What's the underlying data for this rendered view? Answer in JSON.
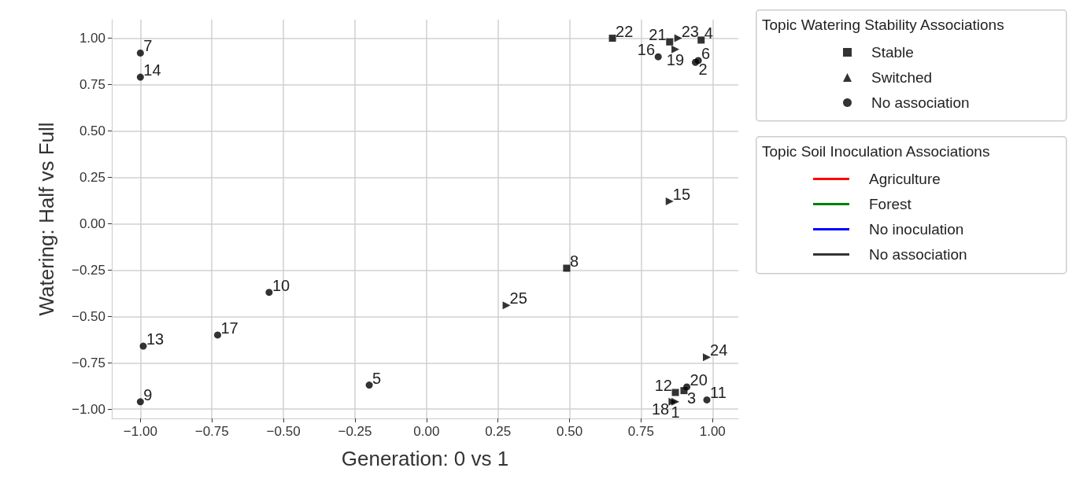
{
  "chart_data": {
    "type": "scatter",
    "xlabel": "Generation: 0 vs 1",
    "ylabel": "Watering: Half vs Full",
    "xlim": [
      -1.1,
      1.09
    ],
    "ylim": [
      -1.05,
      1.1
    ],
    "xticks": [
      {
        "value": -1,
        "label": "−1.00"
      },
      {
        "value": -0.75,
        "label": "−0.75"
      },
      {
        "value": -0.5,
        "label": "−0.50"
      },
      {
        "value": -0.25,
        "label": "−0.25"
      },
      {
        "value": 0,
        "label": "0.00"
      },
      {
        "value": 0.25,
        "label": "0.25"
      },
      {
        "value": 0.5,
        "label": "0.50"
      },
      {
        "value": 0.75,
        "label": "0.75"
      },
      {
        "value": 1,
        "label": "1.00"
      }
    ],
    "yticks": [
      {
        "value": -1,
        "label": "−1.00"
      },
      {
        "value": -0.75,
        "label": "−0.75"
      },
      {
        "value": -0.5,
        "label": "−0.50"
      },
      {
        "value": -0.25,
        "label": "−0.25"
      },
      {
        "value": 0,
        "label": "0.00"
      },
      {
        "value": 0.25,
        "label": "0.25"
      },
      {
        "value": 0.5,
        "label": "0.50"
      },
      {
        "value": 0.75,
        "label": "0.75"
      },
      {
        "value": 1,
        "label": "1.00"
      }
    ],
    "grid": true,
    "legend": "right",
    "legend_title": [
      "Topic Watering Stability Associations",
      "Topic Soil Inoculation Associations"
    ],
    "series": [
      {
        "name": "Stable",
        "marker": "square",
        "color": "#000000",
        "x": [
          0.65,
          0.85,
          0.96,
          0.49,
          0.9,
          0.87
        ],
        "values": [
          1.0,
          0.98,
          0.99,
          -0.24,
          -0.9,
          -0.91
        ]
      },
      {
        "name": "Switched",
        "marker": "triangle",
        "color": "#000000",
        "x": [
          0.88,
          0.87,
          0.28,
          0.85,
          0.98,
          0.86,
          0.87
        ],
        "values": [
          1.0,
          0.94,
          -0.44,
          0.12,
          -0.72,
          -0.96,
          -0.96
        ]
      },
      {
        "name": "No association",
        "marker": "circle",
        "color": "#000000",
        "x": [
          -1.0,
          -1.0,
          -0.99,
          -0.73,
          -0.55,
          -1.0,
          -0.2,
          0.81,
          0.94,
          0.95,
          0.91,
          0.98
        ],
        "values": [
          0.92,
          0.79,
          -0.66,
          -0.6,
          -0.37,
          -0.96,
          -0.87,
          0.9,
          0.87,
          0.88,
          -0.88,
          -0.95
        ]
      },
      {
        "type": "line",
        "name": "Agriculture",
        "color": "#ff0000"
      },
      {
        "type": "line",
        "name": "Forest",
        "color": "#008000"
      },
      {
        "type": "line",
        "name": "No inoculation",
        "color": "#0000ff"
      },
      {
        "type": "line",
        "name": "No association",
        "color": "#000000"
      }
    ],
    "annotations": [
      {
        "text": "22",
        "x": 0.65,
        "y": 1.0
      },
      {
        "text": "21",
        "x": 0.85,
        "y": 0.98
      },
      {
        "text": "4",
        "x": 0.96,
        "y": 0.99
      },
      {
        "text": "8",
        "x": 0.49,
        "y": -0.24
      },
      {
        "text": "3",
        "x": 0.9,
        "y": -0.9
      },
      {
        "text": "12",
        "x": 0.87,
        "y": -0.91
      },
      {
        "text": "23",
        "x": 0.88,
        "y": 1.0
      },
      {
        "text": "19",
        "x": 0.87,
        "y": 0.94
      },
      {
        "text": "25",
        "x": 0.28,
        "y": -0.44
      },
      {
        "text": "15",
        "x": 0.85,
        "y": 0.12
      },
      {
        "text": "24",
        "x": 0.98,
        "y": -0.72
      },
      {
        "text": "18",
        "x": 0.86,
        "y": -0.96
      },
      {
        "text": "1",
        "x": 0.87,
        "y": -0.96
      },
      {
        "text": "7",
        "x": -1.0,
        "y": 0.92
      },
      {
        "text": "14",
        "x": -1.0,
        "y": 0.79
      },
      {
        "text": "13",
        "x": -0.99,
        "y": -0.66
      },
      {
        "text": "17",
        "x": -0.73,
        "y": -0.6
      },
      {
        "text": "10",
        "x": -0.55,
        "y": -0.37
      },
      {
        "text": "9",
        "x": -1.0,
        "y": -0.96
      },
      {
        "text": "5",
        "x": -0.2,
        "y": -0.87
      },
      {
        "text": "16",
        "x": 0.81,
        "y": 0.9
      },
      {
        "text": "2",
        "x": 0.94,
        "y": 0.87
      },
      {
        "text": "6",
        "x": 0.95,
        "y": 0.88
      },
      {
        "text": "20",
        "x": 0.91,
        "y": -0.88
      },
      {
        "text": "11",
        "x": 0.98,
        "y": -0.95
      }
    ]
  }
}
